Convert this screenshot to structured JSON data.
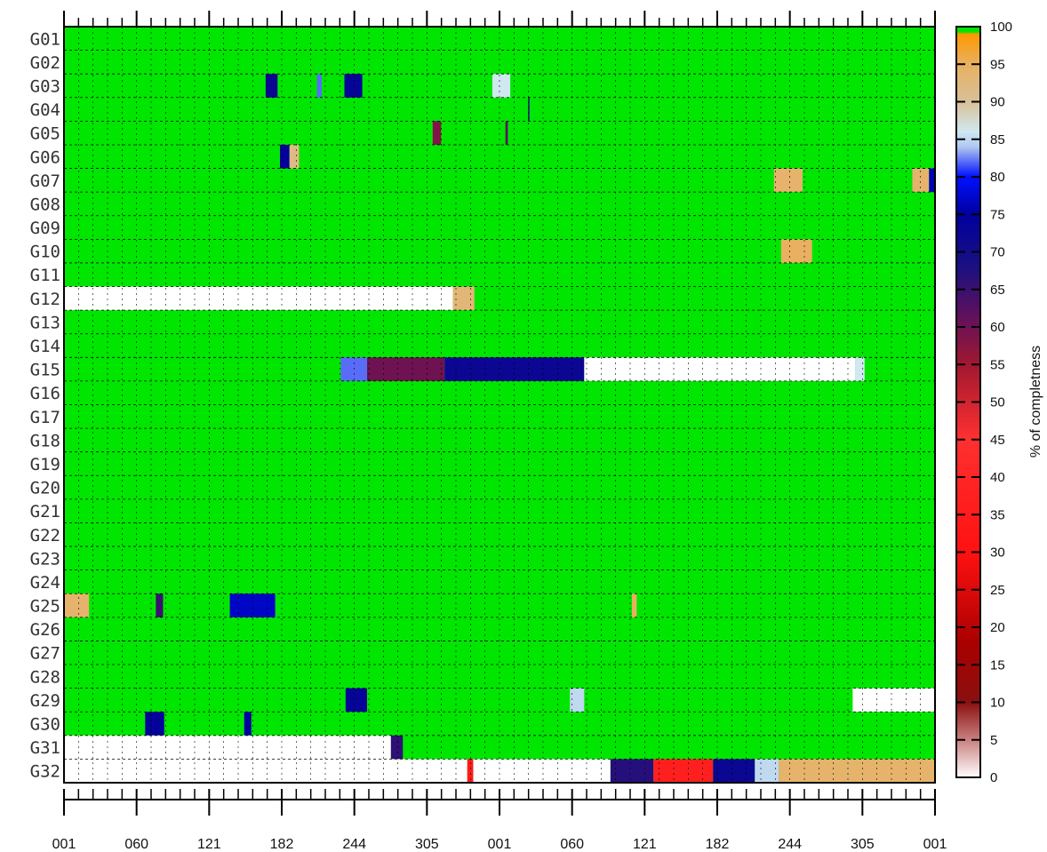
{
  "chart_data": {
    "type": "heatmap",
    "title": "",
    "xlabel": "",
    "ylabel": "",
    "rows": [
      "G01",
      "G02",
      "G03",
      "G04",
      "G05",
      "G06",
      "G07",
      "G08",
      "G09",
      "G10",
      "G11",
      "G12",
      "G13",
      "G14",
      "G15",
      "G16",
      "G17",
      "G18",
      "G19",
      "G20",
      "G21",
      "G22",
      "G23",
      "G24",
      "G25",
      "G26",
      "G27",
      "G28",
      "G29",
      "G30",
      "G31",
      "G32"
    ],
    "x_tick_labels": [
      "001",
      "060",
      "121",
      "182",
      "244",
      "305",
      "001",
      "060",
      "121",
      "182",
      "244",
      "305",
      "001"
    ],
    "x_range_days": [
      1,
      731
    ],
    "default_completeness": 100,
    "colorbar": {
      "label": "% of completness",
      "ticks": [
        0,
        5,
        10,
        15,
        20,
        25,
        30,
        35,
        40,
        45,
        50,
        55,
        60,
        65,
        70,
        75,
        80,
        85,
        90,
        95,
        100
      ],
      "range": [
        0,
        100
      ]
    },
    "low_completeness_segments": [
      {
        "row": "G03",
        "start": 170,
        "end": 180,
        "value": 72
      },
      {
        "row": "G03",
        "start": 213,
        "end": 217,
        "value": 82
      },
      {
        "row": "G03",
        "start": 236,
        "end": 251,
        "value": 73
      },
      {
        "row": "G03",
        "start": 360,
        "end": 375,
        "value": 86
      },
      {
        "row": "G04",
        "start": 390,
        "end": 391,
        "value": 70
      },
      {
        "row": "G05",
        "start": 310,
        "end": 317,
        "value": 58
      },
      {
        "row": "G05",
        "start": 371,
        "end": 373,
        "value": 62
      },
      {
        "row": "G06",
        "start": 182,
        "end": 190,
        "value": 74
      },
      {
        "row": "G06",
        "start": 190,
        "end": 198,
        "value": 92
      },
      {
        "row": "G07",
        "start": 596,
        "end": 620,
        "value": 94
      },
      {
        "row": "G07",
        "start": 712,
        "end": 726,
        "value": 94
      },
      {
        "row": "G07",
        "start": 726,
        "end": 731,
        "value": 76
      },
      {
        "row": "G10",
        "start": 602,
        "end": 628,
        "value": 95
      },
      {
        "row": "G12",
        "start": 1,
        "end": 327,
        "value": 0
      },
      {
        "row": "G12",
        "start": 327,
        "end": 345,
        "value": 93
      },
      {
        "row": "G15",
        "start": 233,
        "end": 255,
        "value": 82
      },
      {
        "row": "G15",
        "start": 255,
        "end": 320,
        "value": 60
      },
      {
        "row": "G15",
        "start": 320,
        "end": 437,
        "value": 72
      },
      {
        "row": "G15",
        "start": 437,
        "end": 664,
        "value": 0
      },
      {
        "row": "G15",
        "start": 664,
        "end": 672,
        "value": 86
      },
      {
        "row": "G25",
        "start": 1,
        "end": 22,
        "value": 94
      },
      {
        "row": "G25",
        "start": 78,
        "end": 84,
        "value": 65
      },
      {
        "row": "G25",
        "start": 140,
        "end": 178,
        "value": 77
      },
      {
        "row": "G25",
        "start": 477,
        "end": 481,
        "value": 95
      },
      {
        "row": "G29",
        "start": 237,
        "end": 255,
        "value": 73
      },
      {
        "row": "G29",
        "start": 425,
        "end": 437,
        "value": 85
      },
      {
        "row": "G29",
        "start": 662,
        "end": 731,
        "value": 0
      },
      {
        "row": "G30",
        "start": 69,
        "end": 85,
        "value": 74
      },
      {
        "row": "G30",
        "start": 152,
        "end": 158,
        "value": 75
      },
      {
        "row": "G31",
        "start": 1,
        "end": 275,
        "value": 0
      },
      {
        "row": "G31",
        "start": 275,
        "end": 285,
        "value": 66
      },
      {
        "row": "G32",
        "start": 1,
        "end": 339,
        "value": 0
      },
      {
        "row": "G32",
        "start": 339,
        "end": 344,
        "value": 35
      },
      {
        "row": "G32",
        "start": 344,
        "end": 459,
        "value": 0
      },
      {
        "row": "G32",
        "start": 459,
        "end": 495,
        "value": 67
      },
      {
        "row": "G32",
        "start": 495,
        "end": 545,
        "value": 37
      },
      {
        "row": "G32",
        "start": 545,
        "end": 580,
        "value": 72
      },
      {
        "row": "G32",
        "start": 580,
        "end": 600,
        "value": 85
      },
      {
        "row": "G32",
        "start": 600,
        "end": 731,
        "value": 94
      }
    ]
  },
  "colors": {
    "complete": "#00e600",
    "empty": "#ffffff",
    "grid": "#000000"
  }
}
